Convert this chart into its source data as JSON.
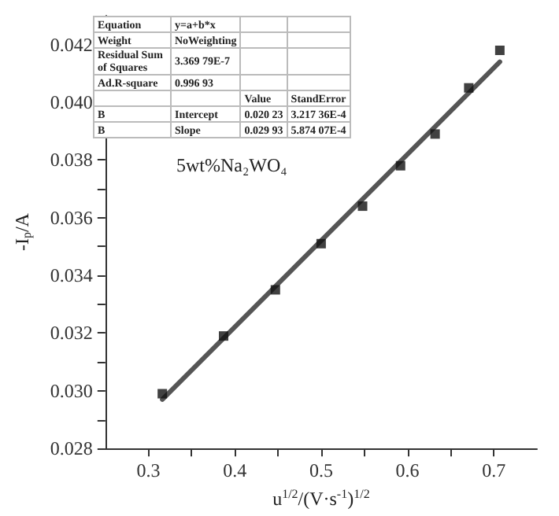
{
  "chart_data": {
    "type": "scatter",
    "xlabel": "u$^{1/2}$/(V·s$^{-1}$)$^{1/2}$",
    "ylabel": "-I$_{p}$/A",
    "series": [
      {
        "color": "#111111",
        "marker": "square",
        "x": [
          0.316,
          0.387,
          0.447,
          0.5,
          0.548,
          0.592,
          0.632,
          0.671,
          0.707
        ],
        "values": [
          0.0299,
          0.0319,
          0.0335,
          0.0351,
          0.0364,
          0.0378,
          0.0389,
          0.0405,
          0.0418
        ]
      },
      {
        "type": "line",
        "color": "#555555",
        "marker": "none",
        "x": [
          0.316,
          0.707
        ],
        "values": [
          0.0297,
          0.0414
        ]
      }
    ],
    "xlim": [
      0.25,
      0.75
    ],
    "xticks": [
      0.3,
      {
        "value": 0.35,
        "label": null
      },
      0.4,
      {
        "value": 0.45,
        "label": null
      },
      0.5,
      {
        "value": 0.55,
        "label": null
      },
      0.6,
      {
        "value": 0.65,
        "label": null
      },
      0.7
    ],
    "ylim": [
      0.028,
      0.043
    ],
    "yticks": [
      0.028,
      {
        "value": 0.029,
        "label": null
      },
      {
        "value": 0.03,
        "label": "0.030"
      },
      {
        "value": 0.031,
        "label": null
      },
      0.032,
      {
        "value": 0.033,
        "label": null
      },
      0.034,
      {
        "value": 0.035,
        "label": null
      },
      0.036,
      {
        "value": 0.037,
        "label": null
      },
      0.038,
      {
        "value": 0.039,
        "label": null
      },
      {
        "value": 0.04,
        "label": "0.040"
      },
      {
        "value": 0.041,
        "label": null
      },
      0.042
    ],
    "grid": false,
    "annotations": [
      "5wt%Na₂WO₄",
      "Equation",
      "y=a+b*x",
      "Weight",
      "NoWeighting",
      "Residual Sum of Squares",
      "3.369 79E-7",
      "Ad.R-square",
      "0.996 93",
      "Value",
      "StandError",
      "B",
      "Intercept",
      "0.020 23",
      "3.217 36E-4",
      "B",
      "Slope",
      "0.029 93",
      "5.874 07E-4"
    ]
  }
}
